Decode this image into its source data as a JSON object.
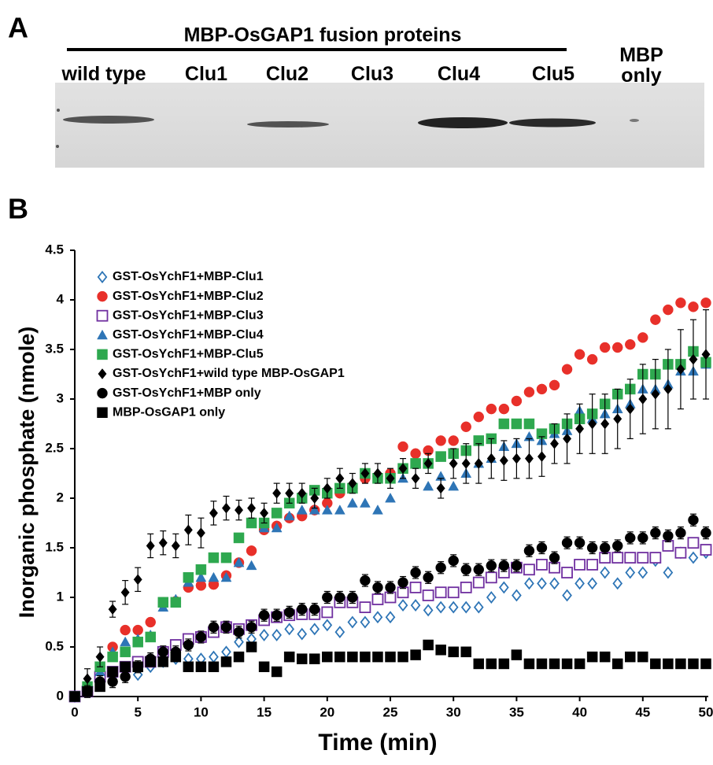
{
  "panel_a": {
    "label": "A",
    "title": "MBP-OsGAP1 fusion proteins",
    "lanes": [
      "wild type",
      "Clu1",
      "Clu2",
      "Clu3",
      "Clu4",
      "Clu5",
      "MBP only"
    ]
  },
  "panel_b": {
    "label": "B"
  },
  "chart_data": {
    "type": "scatter",
    "x_label": "Time (min)",
    "y_label": "Inorganic phosphate (nmole)",
    "xlim": [
      0,
      50
    ],
    "xticks": [
      0,
      5,
      10,
      15,
      20,
      25,
      30,
      35,
      40,
      45,
      50
    ],
    "ylim": [
      0,
      4.5
    ],
    "yticks": [
      0,
      0.5,
      1,
      1.5,
      2,
      2.5,
      3,
      3.5,
      4,
      4.5
    ],
    "legend": "upper-left",
    "x": [
      0,
      1,
      2,
      3,
      4,
      5,
      6,
      7,
      8,
      9,
      10,
      11,
      12,
      13,
      14,
      15,
      16,
      17,
      18,
      19,
      20,
      21,
      22,
      23,
      24,
      25,
      26,
      27,
      28,
      29,
      30,
      31,
      32,
      33,
      34,
      35,
      36,
      37,
      38,
      39,
      40,
      41,
      42,
      43,
      44,
      45,
      46,
      47,
      48,
      49,
      50
    ],
    "series": [
      {
        "name": "GST-OsYchF1+MBP-Clu1",
        "color": "#2e75b6",
        "marker": "diamond-open",
        "values": [
          0,
          0.05,
          0.15,
          0.2,
          0.22,
          0.22,
          0.3,
          0.35,
          0.38,
          0.38,
          0.38,
          0.4,
          0.45,
          0.55,
          0.58,
          0.62,
          0.62,
          0.68,
          0.63,
          0.68,
          0.72,
          0.65,
          0.75,
          0.75,
          0.8,
          0.8,
          0.92,
          0.92,
          0.87,
          0.9,
          0.9,
          0.9,
          0.9,
          1.0,
          1.1,
          1.02,
          1.14,
          1.14,
          1.14,
          1.02,
          1.14,
          1.14,
          1.25,
          1.14,
          1.25,
          1.25,
          1.37,
          1.25,
          1.45,
          1.4,
          1.45
        ]
      },
      {
        "name": "GST-OsYchF1+MBP-Clu2",
        "color": "#e8302a",
        "marker": "circle",
        "values": [
          0,
          0.1,
          0.3,
          0.5,
          0.67,
          0.67,
          0.75,
          0.95,
          0.96,
          1.1,
          1.12,
          1.13,
          1.22,
          1.35,
          1.47,
          1.68,
          1.72,
          1.8,
          1.82,
          1.88,
          1.95,
          2.05,
          2.1,
          2.2,
          2.22,
          2.25,
          2.52,
          2.45,
          2.48,
          2.58,
          2.58,
          2.72,
          2.82,
          2.9,
          2.9,
          2.98,
          3.07,
          3.1,
          3.14,
          3.3,
          3.45,
          3.4,
          3.52,
          3.52,
          3.55,
          3.62,
          3.8,
          3.9,
          3.97,
          3.93,
          3.97
        ]
      },
      {
        "name": "GST-OsYchF1+MBP-Clu3",
        "color": "#7030a0",
        "marker": "square-open",
        "values": [
          0,
          0.05,
          0.2,
          0.25,
          0.3,
          0.35,
          0.35,
          0.45,
          0.52,
          0.58,
          0.6,
          0.65,
          0.7,
          0.68,
          0.72,
          0.77,
          0.8,
          0.82,
          0.83,
          0.83,
          0.85,
          0.95,
          0.95,
          0.9,
          0.98,
          1.0,
          1.05,
          1.1,
          1.02,
          1.05,
          1.05,
          1.1,
          1.15,
          1.2,
          1.25,
          1.3,
          1.28,
          1.33,
          1.3,
          1.25,
          1.33,
          1.33,
          1.4,
          1.4,
          1.4,
          1.4,
          1.4,
          1.52,
          1.45,
          1.55,
          1.48
        ]
      },
      {
        "name": "GST-OsYchF1+MBP-Clu4",
        "color": "#2e75b6",
        "marker": "triangle",
        "values": [
          0,
          0.12,
          0.25,
          0.45,
          0.55,
          0.58,
          0.62,
          0.9,
          0.98,
          1.15,
          1.2,
          1.2,
          1.2,
          1.35,
          1.32,
          1.7,
          1.7,
          1.82,
          1.88,
          1.88,
          1.88,
          1.88,
          1.95,
          1.95,
          1.88,
          2.0,
          2.2,
          2.35,
          2.12,
          2.22,
          2.12,
          2.25,
          2.35,
          2.4,
          2.52,
          2.55,
          2.62,
          2.58,
          2.65,
          2.68,
          2.88,
          2.8,
          2.85,
          2.9,
          2.95,
          3.1,
          3.1,
          3.15,
          3.28,
          3.28,
          3.35
        ]
      },
      {
        "name": "GST-OsYchF1+MBP-Clu5",
        "color": "#2ea84f",
        "marker": "square",
        "values": [
          0,
          0.1,
          0.3,
          0.4,
          0.45,
          0.55,
          0.6,
          0.95,
          0.95,
          1.2,
          1.28,
          1.4,
          1.4,
          1.6,
          1.75,
          1.75,
          1.85,
          1.95,
          2.0,
          2.08,
          2.05,
          2.1,
          2.1,
          2.25,
          2.2,
          2.2,
          2.3,
          2.35,
          2.35,
          2.42,
          2.45,
          2.48,
          2.58,
          2.6,
          2.75,
          2.75,
          2.75,
          2.65,
          2.7,
          2.75,
          2.8,
          2.85,
          2.95,
          3.05,
          3.1,
          3.25,
          3.25,
          3.35,
          3.35,
          3.48,
          3.37
        ]
      },
      {
        "name": "GST-OsYchF1+wild type MBP-OsGAP1",
        "color": "#000000",
        "marker": "diamond",
        "values": [
          0,
          0.18,
          0.4,
          0.88,
          1.05,
          1.18,
          1.52,
          1.55,
          1.52,
          1.68,
          1.65,
          1.85,
          1.9,
          1.88,
          1.9,
          1.85,
          2.05,
          2.05,
          2.05,
          2.0,
          2.1,
          2.2,
          2.15,
          2.25,
          2.25,
          2.2,
          2.3,
          2.2,
          2.35,
          2.1,
          2.35,
          2.35,
          2.35,
          2.4,
          2.38,
          2.4,
          2.4,
          2.42,
          2.55,
          2.6,
          2.7,
          2.75,
          2.75,
          2.8,
          2.9,
          3.0,
          3.05,
          3.1,
          3.3,
          3.4,
          3.45
        ],
        "errors": [
          0,
          0.1,
          0.1,
          0.08,
          0.12,
          0.12,
          0.12,
          0.12,
          0.12,
          0.15,
          0.15,
          0.12,
          0.12,
          0.1,
          0.1,
          0.1,
          0.1,
          0.1,
          0.1,
          0.1,
          0.1,
          0.1,
          0.1,
          0.1,
          0.1,
          0.1,
          0.1,
          0.1,
          0.1,
          0.1,
          0.15,
          0.2,
          0.2,
          0.2,
          0.2,
          0.2,
          0.2,
          0.2,
          0.2,
          0.25,
          0.25,
          0.3,
          0.3,
          0.3,
          0.3,
          0.35,
          0.35,
          0.4,
          0.4,
          0.4,
          0.45
        ]
      },
      {
        "name": "GST-OsYchF1+MBP only",
        "color": "#000000",
        "marker": "circle",
        "values": [
          0,
          0.05,
          0.15,
          0.15,
          0.2,
          0.3,
          0.38,
          0.45,
          0.45,
          0.52,
          0.6,
          0.7,
          0.7,
          0.65,
          0.7,
          0.82,
          0.82,
          0.85,
          0.88,
          0.88,
          1.0,
          1.0,
          1.0,
          1.17,
          1.1,
          1.1,
          1.15,
          1.25,
          1.2,
          1.3,
          1.37,
          1.28,
          1.28,
          1.32,
          1.32,
          1.32,
          1.47,
          1.5,
          1.4,
          1.55,
          1.55,
          1.5,
          1.5,
          1.52,
          1.6,
          1.6,
          1.65,
          1.62,
          1.65,
          1.78,
          1.65
        ],
        "errors": [
          0,
          0.06,
          0.06,
          0.06,
          0.06,
          0.06,
          0.06,
          0.06,
          0.06,
          0.06,
          0.06,
          0.06,
          0.06,
          0.06,
          0.06,
          0.06,
          0.06,
          0.06,
          0.06,
          0.06,
          0.06,
          0.06,
          0.06,
          0.06,
          0.06,
          0.06,
          0.06,
          0.06,
          0.06,
          0.06,
          0.06,
          0.06,
          0.06,
          0.06,
          0.06,
          0.06,
          0.06,
          0.06,
          0.06,
          0.06,
          0.06,
          0.06,
          0.06,
          0.06,
          0.06,
          0.06,
          0.06,
          0.06,
          0.06,
          0.06,
          0.06
        ]
      },
      {
        "name": "MBP-OsGAP1 only",
        "color": "#000000",
        "marker": "square",
        "values": [
          0,
          0.05,
          0.1,
          0.25,
          0.3,
          0.3,
          0.35,
          0.35,
          0.4,
          0.3,
          0.3,
          0.3,
          0.35,
          0.4,
          0.5,
          0.3,
          0.25,
          0.4,
          0.38,
          0.38,
          0.4,
          0.4,
          0.4,
          0.4,
          0.4,
          0.4,
          0.4,
          0.42,
          0.52,
          0.47,
          0.45,
          0.45,
          0.33,
          0.33,
          0.33,
          0.42,
          0.33,
          0.33,
          0.33,
          0.33,
          0.33,
          0.4,
          0.4,
          0.33,
          0.4,
          0.4,
          0.33,
          0.33,
          0.33,
          0.33,
          0.33
        ]
      }
    ]
  }
}
